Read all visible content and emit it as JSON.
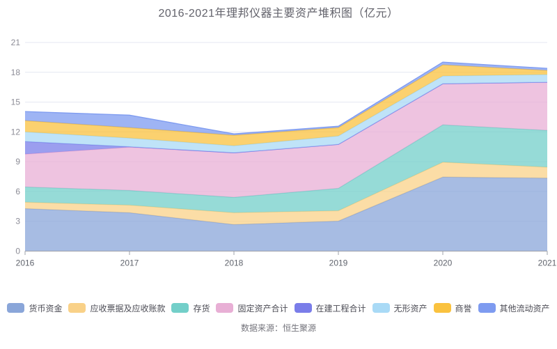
{
  "title": "2016-2021年理邦仪器主要资产堆积图（亿元）",
  "source": "数据来源：恒生聚源",
  "colors": {
    "background": "#ffffff",
    "grid": "#e4e7f1",
    "axis": "#9ca0aa",
    "axis_text": "#8c8c96",
    "tick_text": "#60646d",
    "title_text": "#62626b",
    "legend_text": "#4c4c55",
    "source_text": "#74747c"
  },
  "chart_data": {
    "type": "area",
    "stacked": true,
    "title": "2016-2021年理邦仪器主要资产堆积图（亿元）",
    "xlabel": "",
    "ylabel": "",
    "categories": [
      "2016",
      "2017",
      "2018",
      "2019",
      "2020",
      "2021"
    ],
    "ylim": [
      0,
      21
    ],
    "yticks": [
      0,
      3,
      6,
      9,
      12,
      15,
      18,
      21
    ],
    "grid": true,
    "legend_position": "bottom",
    "area_opacity": 0.75,
    "series": [
      {
        "name": "货币资金",
        "color": "#8aa6d9",
        "values": [
          4.28,
          3.86,
          2.67,
          3.02,
          7.45,
          7.35
        ]
      },
      {
        "name": "应收票据及应收账款",
        "color": "#f9d188",
        "values": [
          0.64,
          0.77,
          1.19,
          1.05,
          1.5,
          1.1
        ]
      },
      {
        "name": "存货",
        "color": "#73cfc9",
        "values": [
          1.54,
          1.48,
          1.55,
          2.25,
          3.76,
          3.7
        ]
      },
      {
        "name": "固定资产合计",
        "color": "#e8afd5",
        "values": [
          3.3,
          4.35,
          4.49,
          4.42,
          4.14,
          4.85
        ]
      },
      {
        "name": "在建工程合计",
        "color": "#7a7de9",
        "values": [
          1.27,
          0.05,
          0.0,
          0.0,
          0.0,
          0.0
        ]
      },
      {
        "name": "无形资产",
        "color": "#a9daf6",
        "values": [
          0.97,
          0.87,
          0.7,
          0.85,
          0.78,
          0.77
        ]
      },
      {
        "name": "商誉",
        "color": "#fac23f",
        "values": [
          1.13,
          1.05,
          1.06,
          0.84,
          1.12,
          0.42
        ]
      },
      {
        "name": "其他流动资产",
        "color": "#7e9bf0",
        "values": [
          0.92,
          1.26,
          0.14,
          0.14,
          0.28,
          0.21
        ]
      }
    ]
  }
}
